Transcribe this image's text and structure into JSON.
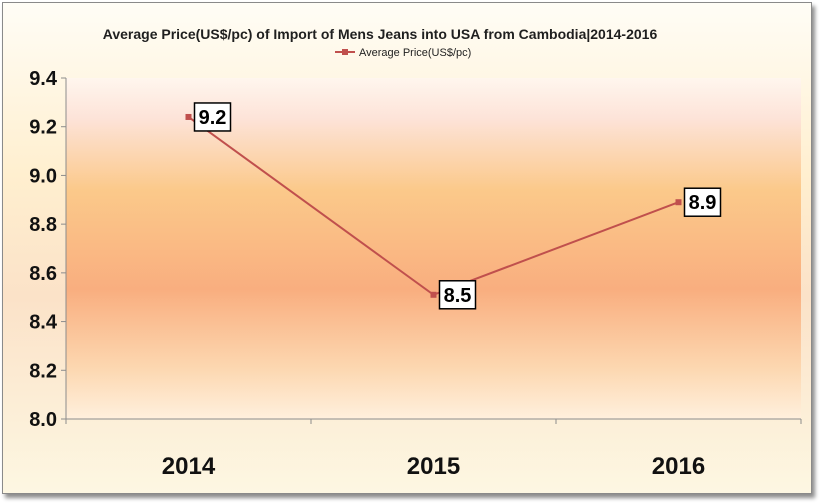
{
  "chart_data": {
    "type": "line",
    "title": "Average Price(US$/pc) of Import of Mens Jeans into USA from Cambodia|2014-2016",
    "categories": [
      "2014",
      "2015",
      "2016"
    ],
    "series": [
      {
        "name": "Average Price(US$/pc)",
        "values": [
          9.24,
          8.51,
          8.89
        ],
        "labels": [
          "9.2",
          "8.5",
          "8.9"
        ],
        "color": "#c0504d"
      }
    ],
    "ylim": [
      8.0,
      9.4
    ],
    "yticks": [
      "8.0",
      "8.2",
      "8.4",
      "8.6",
      "8.8",
      "9.0",
      "9.2",
      "9.4"
    ],
    "legend": "top-center",
    "grid": false,
    "plot_background": "orange gradient"
  }
}
